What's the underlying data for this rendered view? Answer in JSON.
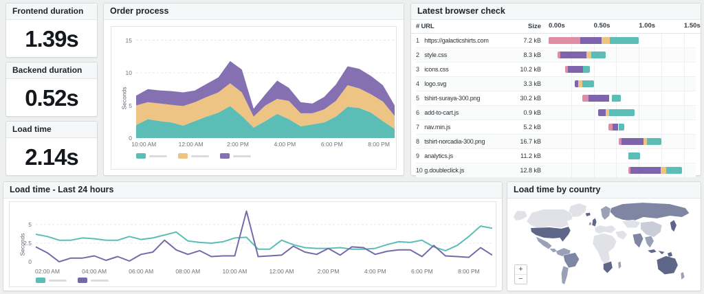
{
  "palette": {
    "teal": "#5cbdb6",
    "orange": "#eec485",
    "purple_area": "#8570b2",
    "purple_bar": "#7e64ad",
    "purple_line": "#7569aa",
    "pink": "#e08ca4",
    "grid": "#e1e5e7",
    "redacted_label": "#d9dcde"
  },
  "stats": [
    {
      "title": "Frontend duration",
      "value": "1.39s"
    },
    {
      "title": "Backend duration",
      "value": "0.52s"
    },
    {
      "title": "Load time",
      "value": "2.14s"
    }
  ],
  "chart_data": [
    {
      "type": "area",
      "stacked": true,
      "title": "Order process",
      "ylabel": "Seconds",
      "ylim": [
        0,
        16
      ],
      "yticks": [
        0,
        5,
        10,
        15
      ],
      "x_start_h": 9.67,
      "x_end_h": 20.67,
      "xticks": [
        {
          "h": 10,
          "label": "10:00 AM"
        },
        {
          "h": 12,
          "label": "12:00 AM"
        },
        {
          "h": 14,
          "label": "2:00 PM"
        },
        {
          "h": 16,
          "label": "4:00 PM"
        },
        {
          "h": 18,
          "label": "6:00 PM"
        },
        {
          "h": 20,
          "label": "8:00 PM"
        }
      ],
      "legend_note": "three series, legend labels blurred in source",
      "series": [
        {
          "name": "series-teal",
          "color": "#5cbdb6",
          "values": [
            2.0,
            2.9,
            2.6,
            2.4,
            1.9,
            2.6,
            3.3,
            3.9,
            4.9,
            3.4,
            1.6,
            2.6,
            3.7,
            2.9,
            1.8,
            2.1,
            2.4,
            3.3,
            4.8,
            4.6,
            3.9,
            2.6,
            1.4
          ]
        },
        {
          "name": "series-orange",
          "color": "#eec485",
          "values": [
            3.0,
            2.6,
            2.7,
            2.7,
            3.0,
            2.9,
            3.0,
            3.1,
            3.5,
            3.6,
            1.7,
            2.4,
            2.3,
            2.8,
            2.0,
            1.7,
            2.0,
            2.4,
            3.3,
            3.0,
            2.8,
            3.0,
            2.0
          ]
        },
        {
          "name": "series-purple",
          "color": "#8570b2",
          "values": [
            1.5,
            2.0,
            2.0,
            2.1,
            2.1,
            1.8,
            2.0,
            2.3,
            3.4,
            3.5,
            1.2,
            1.7,
            2.8,
            2.0,
            1.7,
            1.5,
            1.9,
            2.5,
            2.9,
            3.0,
            2.8,
            2.5,
            1.6
          ]
        }
      ]
    },
    {
      "type": "line",
      "title": "Load time - Last 24 hours",
      "ylabel": "Seconds",
      "ylim": [
        -0.45,
        7.3
      ],
      "yticks": [
        0,
        2.5,
        5
      ],
      "x_start_h": 1.5,
      "x_end_h": 21,
      "xticks": [
        {
          "h": 2,
          "label": "02:00 AM"
        },
        {
          "h": 4,
          "label": "04:00 AM"
        },
        {
          "h": 6,
          "label": "06:00 AM"
        },
        {
          "h": 8,
          "label": "08:00 AM"
        },
        {
          "h": 10,
          "label": "10:00 AM"
        },
        {
          "h": 12,
          "label": "12:00 AM"
        },
        {
          "h": 14,
          "label": "2:00 PM"
        },
        {
          "h": 16,
          "label": "4:00 PM"
        },
        {
          "h": 18,
          "label": "6:00 PM"
        },
        {
          "h": 20,
          "label": "8:00 PM"
        }
      ],
      "legend_note": "two series, legend labels blurred in source",
      "series": [
        {
          "name": "series-teal",
          "color": "#5cbdb6",
          "values": [
            3.7,
            3.4,
            2.9,
            2.9,
            3.2,
            3.1,
            2.9,
            2.9,
            3.4,
            3.0,
            3.2,
            3.6,
            4.0,
            2.8,
            2.6,
            2.5,
            2.7,
            3.2,
            3.3,
            1.7,
            1.7,
            2.9,
            2.3,
            1.9,
            1.8,
            1.8,
            1.9,
            1.7,
            1.7,
            1.8,
            2.3,
            2.7,
            2.6,
            2.9,
            2.0,
            1.5,
            2.2,
            3.4,
            4.8,
            4.5
          ]
        },
        {
          "name": "series-purple",
          "color": "#7569aa",
          "values": [
            2.0,
            1.2,
            0.0,
            0.5,
            0.5,
            0.8,
            0.2,
            0.7,
            0.1,
            1.0,
            1.3,
            2.9,
            1.6,
            1.0,
            1.5,
            0.7,
            0.8,
            0.8,
            6.8,
            0.7,
            0.8,
            0.9,
            2.1,
            1.3,
            1.0,
            1.8,
            0.9,
            2.0,
            1.9,
            1.0,
            1.4,
            1.6,
            1.6,
            0.7,
            2.2,
            0.8,
            0.7,
            0.6,
            1.9,
            0.9
          ]
        }
      ]
    },
    {
      "type": "table",
      "title": "Latest browser check",
      "url_header": "# URL",
      "size_header": "Size",
      "time_axis": {
        "tick_labels": [
          "0.00s",
          "0.50s",
          "1.00s",
          "1.50s"
        ],
        "tick_seconds": [
          0,
          0.5,
          1.0,
          1.5
        ],
        "max_seconds": 1.63,
        "grid_seconds": [
          0.25,
          0.5,
          0.75,
          1.0,
          1.25,
          1.5
        ]
      },
      "rows": [
        {
          "num": "1",
          "url": "https://galacticshirts.com",
          "size": "7.2 kB",
          "segments": [
            {
              "c": "pink",
              "from": 0.0,
              "to": 0.35
            },
            {
              "c": "purple",
              "from": 0.35,
              "to": 0.59
            },
            {
              "c": "orange",
              "from": 0.59,
              "to": 0.68
            },
            {
              "c": "teal",
              "from": 0.68,
              "to": 1.0
            }
          ]
        },
        {
          "num": "2",
          "url": "style.css",
          "size": "8.3 kB",
          "segments": [
            {
              "c": "pink",
              "from": 0.1,
              "to": 0.13
            },
            {
              "c": "purple",
              "from": 0.13,
              "to": 0.42
            },
            {
              "c": "orange",
              "from": 0.42,
              "to": 0.47
            },
            {
              "c": "teal",
              "from": 0.47,
              "to": 0.63
            }
          ]
        },
        {
          "num": "3",
          "url": "icons.css",
          "size": "10.2 kB",
          "segments": [
            {
              "c": "pink",
              "from": 0.18,
              "to": 0.21
            },
            {
              "c": "purple",
              "from": 0.21,
              "to": 0.38
            },
            {
              "c": "teal",
              "from": 0.38,
              "to": 0.46
            }
          ]
        },
        {
          "num": "4",
          "url": "logo.svg",
          "size": "3.3 kB",
          "segments": [
            {
              "c": "purple",
              "from": 0.29,
              "to": 0.33
            },
            {
              "c": "orange",
              "from": 0.33,
              "to": 0.37
            },
            {
              "c": "teal",
              "from": 0.37,
              "to": 0.5
            }
          ]
        },
        {
          "num": "5",
          "url": "tshirt-suraya-300.png",
          "size": "30.2 kB",
          "segments": [
            {
              "c": "pink",
              "from": 0.37,
              "to": 0.44
            },
            {
              "c": "purple",
              "from": 0.44,
              "to": 0.67
            },
            {
              "c": "teal",
              "from": 0.7,
              "to": 0.8
            }
          ]
        },
        {
          "num": "6",
          "url": "add-to-cart.js",
          "size": "0.9 kB",
          "segments": [
            {
              "c": "purple",
              "from": 0.55,
              "to": 0.63
            },
            {
              "c": "orange",
              "from": 0.63,
              "to": 0.67
            },
            {
              "c": "teal",
              "from": 0.67,
              "to": 0.95
            }
          ]
        },
        {
          "num": "7",
          "url": "nav.min.js",
          "size": "5.2 kB",
          "segments": [
            {
              "c": "pink",
              "from": 0.66,
              "to": 0.71
            },
            {
              "c": "purple",
              "from": 0.71,
              "to": 0.77
            },
            {
              "c": "teal",
              "from": 0.78,
              "to": 0.84
            }
          ]
        },
        {
          "num": "8",
          "url": "tshirt-norcadia-300.png",
          "size": "16.7 kB",
          "segments": [
            {
              "c": "pink",
              "from": 0.78,
              "to": 0.81
            },
            {
              "c": "purple",
              "from": 0.81,
              "to": 1.05
            },
            {
              "c": "orange",
              "from": 1.05,
              "to": 1.09
            },
            {
              "c": "teal",
              "from": 1.09,
              "to": 1.25
            }
          ]
        },
        {
          "num": "9",
          "url": "analytics.js",
          "size": "11.2 kB",
          "segments": [
            {
              "c": "teal",
              "from": 0.88,
              "to": 1.01
            }
          ]
        },
        {
          "num": "10",
          "url": "g.doubleclick.js",
          "size": "12.8 kB",
          "segments": [
            {
              "c": "pink",
              "from": 0.88,
              "to": 0.91
            },
            {
              "c": "purple",
              "from": 0.91,
              "to": 1.24
            },
            {
              "c": "orange",
              "from": 1.24,
              "to": 1.3
            },
            {
              "c": "teal",
              "from": 1.3,
              "to": 1.48
            }
          ]
        }
      ]
    }
  ],
  "map": {
    "title": "Load time by country",
    "zoom_in": "+",
    "zoom_out": "−",
    "shade_palette": {
      "light": "#e0e2e7",
      "lightmid": "#c9cdd8",
      "mid": "#9aa1b6",
      "middark": "#7e86a4",
      "dark": "#5f6789"
    },
    "regions": {
      "greenland": "light",
      "alaska": "light",
      "canada": "light",
      "usa": "dark",
      "mexico": "mid",
      "central-america": "mid",
      "south-america-north": "mid",
      "brazil": "middark",
      "argentina": "mid",
      "iceland": "dark",
      "uk": "dark",
      "ireland": "mid",
      "scandinavia": "mid",
      "europe": "light",
      "russia": "middark",
      "central-asia": "light",
      "china": "lightmid",
      "india": "middark",
      "middle-east": "light",
      "africa": "light",
      "south-africa": "dark",
      "madagascar": "mid",
      "se-asia": "mid",
      "indonesia": "dark",
      "japan": "dark",
      "australia": "dark",
      "new-zealand": "mid"
    }
  }
}
